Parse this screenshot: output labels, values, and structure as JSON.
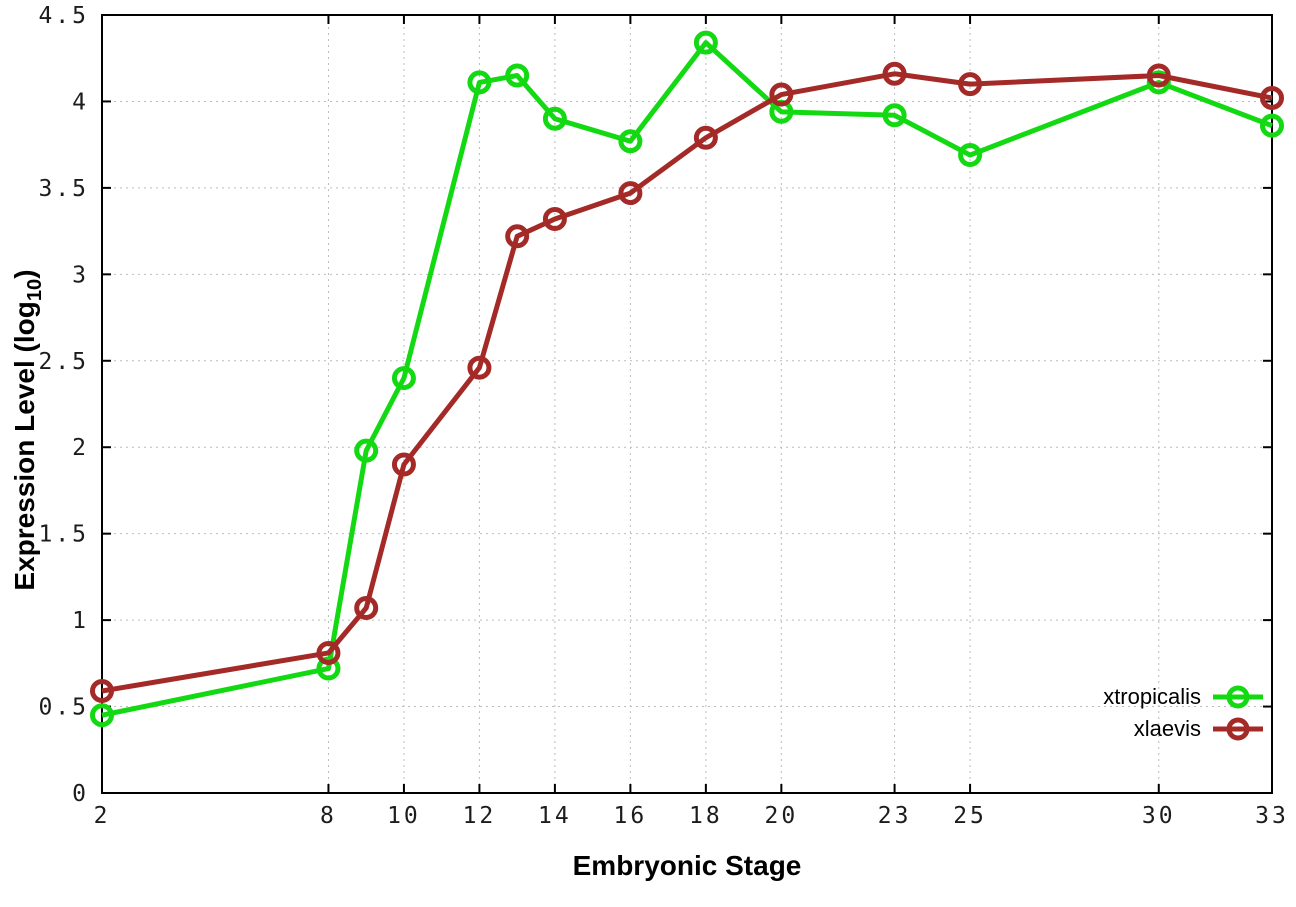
{
  "chart_data": {
    "type": "line",
    "x": [
      2,
      8,
      9,
      10,
      12,
      13,
      14,
      16,
      18,
      20,
      23,
      25,
      30,
      33
    ],
    "series": [
      {
        "name": "xtropicalis",
        "color": "#13d913",
        "values": [
          0.45,
          0.72,
          1.98,
          2.4,
          4.11,
          4.15,
          3.9,
          3.77,
          4.34,
          3.94,
          3.92,
          3.69,
          4.11,
          3.86
        ]
      },
      {
        "name": "xlaevis",
        "color": "#a42a28",
        "values": [
          0.59,
          0.81,
          1.07,
          1.9,
          2.46,
          3.22,
          3.32,
          3.47,
          3.79,
          4.04,
          4.16,
          4.1,
          4.15,
          4.02
        ]
      }
    ],
    "xlabel": "Embryonic Stage",
    "ylabel": {
      "prefix": "Expression Level (log",
      "sub": "10",
      "suffix": ")"
    },
    "xlim": [
      2,
      33
    ],
    "ylim": [
      0,
      4.5
    ],
    "x_ticks": [
      2,
      8,
      10,
      12,
      14,
      16,
      18,
      20,
      23,
      25,
      30,
      33
    ],
    "y_ticks": [
      0,
      0.5,
      1,
      1.5,
      2,
      2.5,
      3,
      3.5,
      4,
      4.5
    ],
    "y_tick_labels": [
      "0",
      "0.5",
      "1",
      "1.5",
      "2",
      "2.5",
      "3",
      "3.5",
      "4",
      "4.5"
    ],
    "grid": true,
    "legend_position": "bottom-right",
    "axis_color": "#000000",
    "grid_color": "#bcbcbc",
    "background": "#ffffff"
  }
}
